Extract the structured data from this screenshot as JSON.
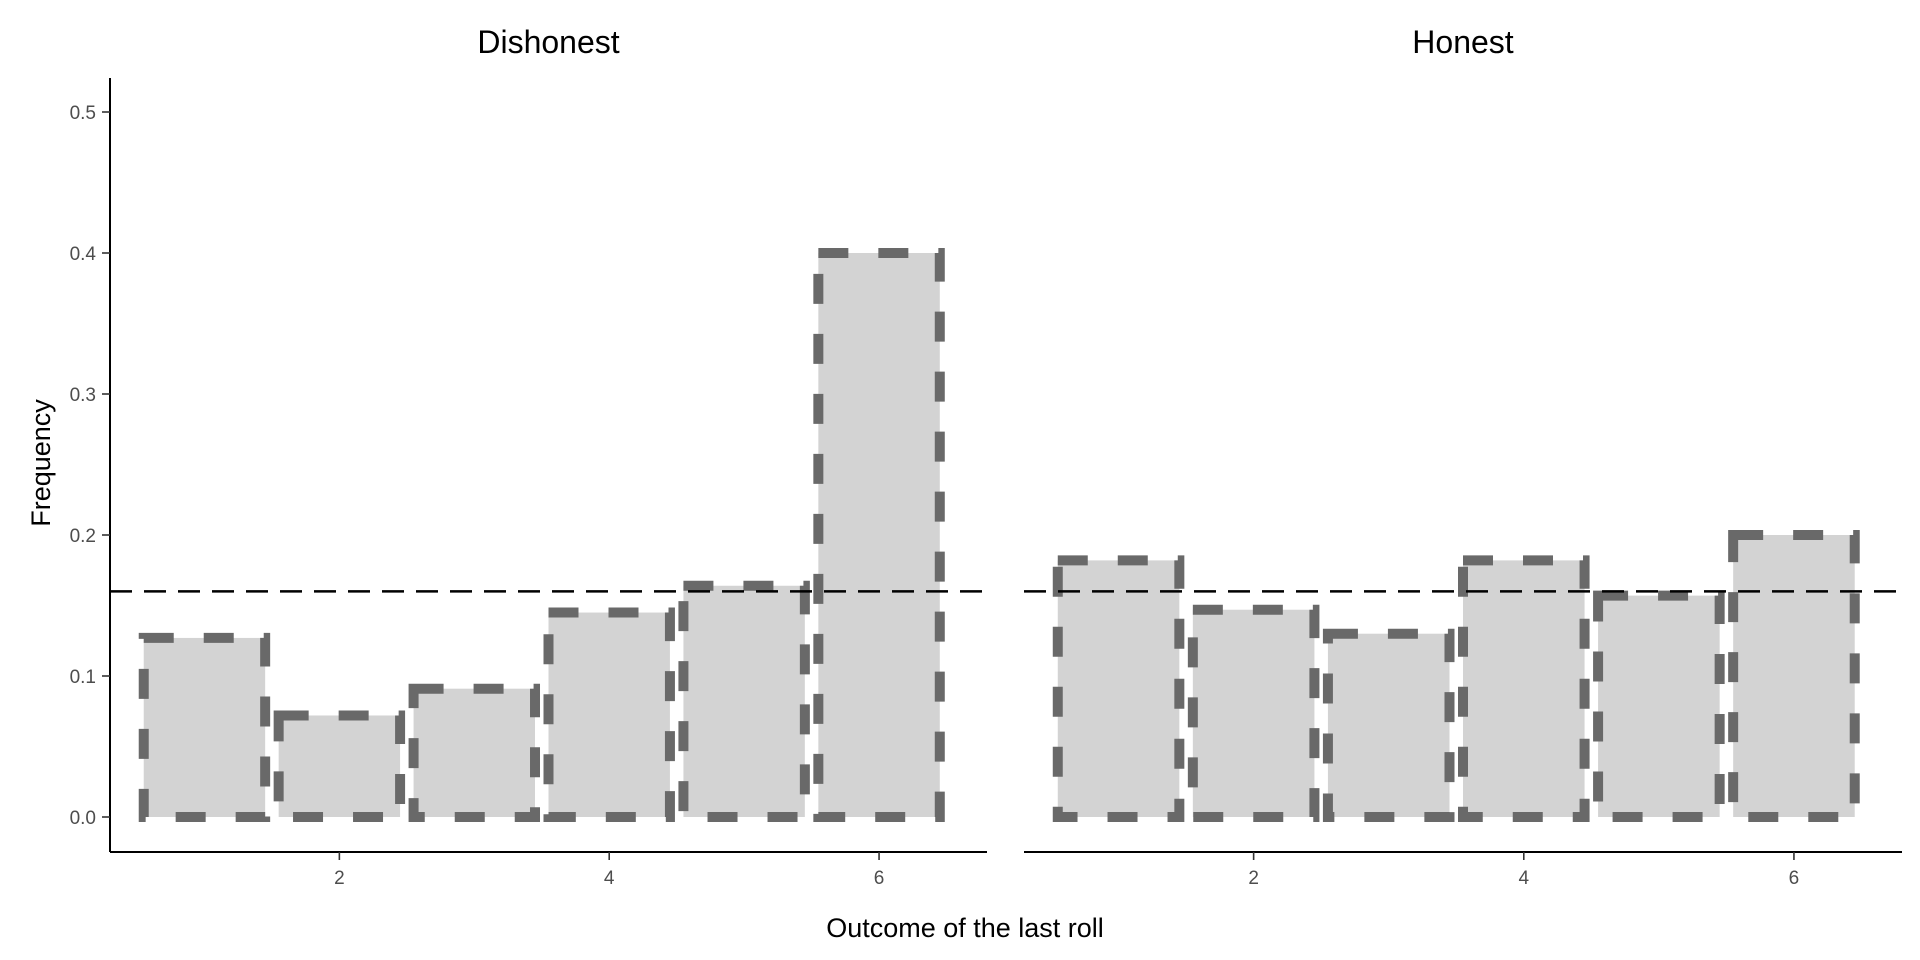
{
  "chart_data": {
    "type": "bar",
    "xlabel": "Outcome of the last roll",
    "ylabel": "Frequency",
    "ylim": [
      0,
      0.525
    ],
    "xlim": [
      0.3,
      6.8
    ],
    "y_ticks": [
      0.0,
      0.1,
      0.2,
      0.3,
      0.4,
      0.5
    ],
    "y_tick_labels": [
      "0.0",
      "0.1",
      "0.2",
      "0.3",
      "0.4",
      "0.5"
    ],
    "x_ticks": [
      2,
      4,
      6
    ],
    "x_tick_labels": [
      "2",
      "4",
      "6"
    ],
    "reference_line_y": 0.16,
    "grid": false,
    "colors": {
      "fill": "#d3d3d3",
      "outline": "#696969",
      "reference": "#000000"
    },
    "panels": [
      {
        "title": "Dishonest",
        "x": [
          1,
          2,
          3,
          4,
          5,
          6
        ],
        "values": [
          0.127,
          0.072,
          0.091,
          0.145,
          0.164,
          0.4
        ]
      },
      {
        "title": "Honest",
        "x": [
          1,
          2,
          3,
          4,
          5,
          6
        ],
        "values": [
          0.182,
          0.147,
          0.13,
          0.182,
          0.157,
          0.2
        ]
      }
    ]
  }
}
